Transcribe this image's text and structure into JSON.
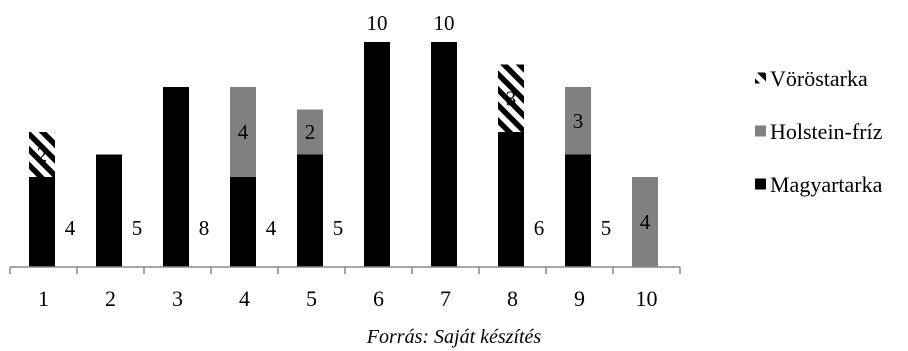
{
  "chart_data": {
    "type": "bar",
    "stacked": true,
    "categories": [
      "1",
      "2",
      "3",
      "4",
      "5",
      "6",
      "7",
      "8",
      "9",
      "10"
    ],
    "series": [
      {
        "name": "Magyartarka",
        "color": "#000000",
        "pattern": "solid",
        "values": [
          4,
          5,
          8,
          4,
          5,
          10,
          10,
          6,
          5,
          0
        ],
        "labels": [
          "4",
          "5",
          "8",
          "4",
          "5",
          "10",
          "10",
          "6",
          "5",
          ""
        ]
      },
      {
        "name": "Holstein-fríz",
        "color": "#808080",
        "pattern": "solid",
        "values": [
          0,
          0,
          0,
          4,
          2,
          0,
          0,
          0,
          3,
          4
        ],
        "labels": [
          "",
          "",
          "",
          "4",
          "2",
          "",
          "",
          "",
          "3",
          "4"
        ]
      },
      {
        "name": "Vöröstarka",
        "color": "#000000",
        "pattern": "diagonal-stripes",
        "values": [
          2,
          0,
          0,
          0,
          0,
          0,
          0,
          3,
          0,
          0
        ],
        "labels": [
          "2",
          "",
          "",
          "",
          "",
          "",
          "",
          "3",
          "",
          ""
        ]
      }
    ],
    "ylim": [
      0,
      10
    ],
    "grid": false,
    "legend_position": "right",
    "source": "Forrás: Saját készítés"
  }
}
